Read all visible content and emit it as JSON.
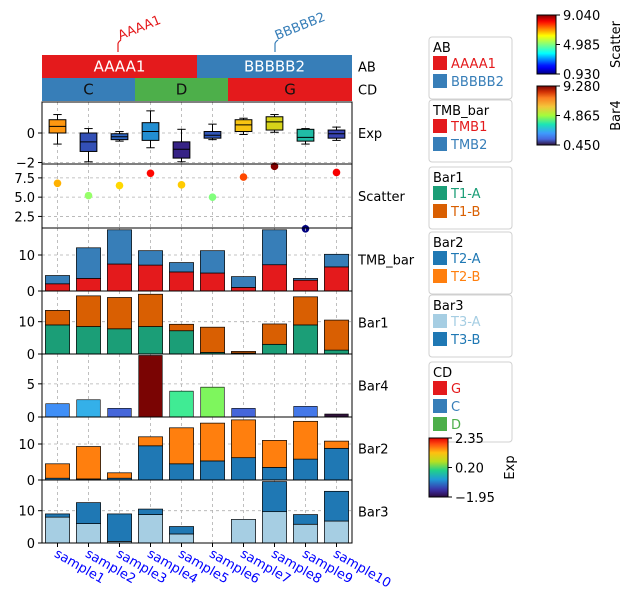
{
  "chart_data": {
    "type": "bar",
    "samples": [
      "sample1",
      "sample2",
      "sample3",
      "sample4",
      "sample5",
      "sample6",
      "sample7",
      "sample8",
      "sample9",
      "sample10"
    ],
    "top_annotations": {
      "ab": {
        "label": "AB",
        "groups": [
          {
            "name": "AAAA1",
            "start": 0,
            "end": 5,
            "color": "#e41a1c"
          },
          {
            "name": "BBBBB2",
            "start": 5,
            "end": 10,
            "color": "#377eb8"
          }
        ],
        "callouts": [
          "AAAA1",
          "BBBBB2"
        ]
      },
      "cd": {
        "label": "CD",
        "groups": [
          {
            "name": "C",
            "start": 0,
            "end": 3,
            "color": "#377eb8"
          },
          {
            "name": "D",
            "start": 3,
            "end": 6,
            "color": "#4daf4a"
          },
          {
            "name": "G",
            "start": 6,
            "end": 10,
            "color": "#e41a1c"
          }
        ]
      }
    },
    "tracks": [
      {
        "key": "exp",
        "type": "boxplot",
        "label": "Exp",
        "ylim": [
          -2.1,
          2.1
        ],
        "yticks": [
          -2,
          0
        ],
        "tick_labels": [
          "−2",
          "0"
        ],
        "boxes": [
          {
            "min": -0.75,
            "q1": 0.0,
            "median": 0.45,
            "q3": 0.9,
            "max": 1.25,
            "value": 1.5
          },
          {
            "min": -1.95,
            "q1": -1.25,
            "median": -0.6,
            "q3": 0.0,
            "max": 0.3,
            "value": -1.2
          },
          {
            "min": -0.55,
            "q1": -0.45,
            "median": -0.25,
            "q3": -0.05,
            "max": 0.1,
            "value": -1.05
          },
          {
            "min": -1.0,
            "q1": -0.5,
            "median": 0.1,
            "q3": 0.7,
            "max": 1.5,
            "value": -0.75
          },
          {
            "min": -1.95,
            "q1": -1.7,
            "median": -1.1,
            "q3": -0.6,
            "max": 0.25,
            "value": -1.6
          },
          {
            "min": -0.45,
            "q1": -0.35,
            "median": -0.15,
            "q3": 0.1,
            "max": 0.6,
            "value": -1.15
          },
          {
            "min": -0.1,
            "q1": 0.1,
            "median": 0.55,
            "q3": 0.9,
            "max": 1.0,
            "value": 1.2
          },
          {
            "min": 0.05,
            "q1": 0.2,
            "median": 0.75,
            "q3": 1.1,
            "max": 1.25,
            "value": 0.9
          },
          {
            "min": -0.75,
            "q1": -0.55,
            "median": -0.3,
            "q3": 0.25,
            "max": 0.3,
            "value": -0.25
          },
          {
            "min": -0.5,
            "q1": -0.35,
            "median": -0.05,
            "q3": 0.2,
            "max": 0.4,
            "value": -1.3
          }
        ]
      },
      {
        "key": "scatter",
        "type": "scatter",
        "label": "Scatter",
        "ylim": [
          1.0,
          9.3
        ],
        "yticks": [
          2.5,
          5.0,
          7.5
        ],
        "tick_labels": [
          "2.5",
          "5.0",
          "7.5"
        ],
        "values": [
          6.8,
          5.2,
          6.5,
          8.1,
          6.6,
          5.0,
          7.6,
          9.0,
          0.9,
          8.2
        ]
      },
      {
        "key": "tmb",
        "type": "stacked_bar",
        "label": "TMB_bar",
        "ylim": [
          0,
          17.5
        ],
        "yticks": [
          0,
          10
        ],
        "tick_labels": [
          "0",
          "10"
        ],
        "series": [
          {
            "name": "TMB1",
            "color": "#e41a1c",
            "values": [
              2.0,
              3.5,
              7.5,
              7.2,
              5.3,
              5.0,
              1.0,
              7.3,
              3.0,
              6.7
            ]
          },
          {
            "name": "TMB2",
            "color": "#377eb8",
            "values": [
              2.3,
              8.5,
              9.5,
              4.0,
              2.6,
              6.2,
              3.0,
              9.7,
              0.5,
              3.5
            ]
          }
        ]
      },
      {
        "key": "bar1",
        "type": "stacked_bar",
        "label": "Bar1",
        "ylim": [
          0,
          19.5
        ],
        "yticks": [
          0,
          10
        ],
        "tick_labels": [
          "0",
          "10"
        ],
        "series": [
          {
            "name": "T1-A",
            "color": "#1b9e77",
            "values": [
              9.0,
              8.5,
              7.8,
              8.5,
              7.2,
              0.5,
              0.3,
              3.0,
              9.0,
              1.2
            ]
          },
          {
            "name": "T1-B",
            "color": "#d95f02",
            "values": [
              4.5,
              9.5,
              9.7,
              10.0,
              2.0,
              7.8,
              0.5,
              6.3,
              8.7,
              9.3
            ]
          }
        ]
      },
      {
        "key": "bar4",
        "type": "bar",
        "label": "Bar4",
        "ylim": [
          0,
          9.5
        ],
        "yticks": [
          0,
          5
        ],
        "tick_labels": [
          "0",
          "5"
        ],
        "values": [
          2.0,
          2.6,
          1.3,
          9.28,
          3.9,
          4.5,
          1.3,
          0.0,
          1.6,
          0.45
        ]
      },
      {
        "key": "bar2",
        "type": "stacked_bar",
        "label": "Bar2",
        "ylim": [
          0,
          17.5
        ],
        "yticks": [
          0,
          10
        ],
        "tick_labels": [
          "0",
          "10"
        ],
        "series": [
          {
            "name": "T2-A",
            "color": "#1f78b4",
            "values": [
              0.5,
              0.3,
              0.5,
              9.5,
              4.5,
              5.3,
              6.2,
              3.5,
              5.8,
              8.8
            ]
          },
          {
            "name": "T2-B",
            "color": "#ff7f0e",
            "values": [
              4.0,
              9.0,
              1.5,
              2.5,
              10.0,
              10.5,
              10.5,
              7.5,
              10.5,
              2.0
            ]
          }
        ]
      },
      {
        "key": "bar3",
        "type": "stacked_bar",
        "label": "Bar3",
        "ylim": [
          0,
          19.5
        ],
        "yticks": [
          0,
          10
        ],
        "tick_labels": [
          "0",
          "10"
        ],
        "series": [
          {
            "name": "T3-A",
            "color": "#a6cee3",
            "values": [
              8.0,
              6.0,
              0.5,
              8.8,
              2.8,
              0.0,
              7.3,
              9.7,
              5.8,
              6.8
            ]
          },
          {
            "name": "T3-B",
            "color": "#1f78b4",
            "values": [
              1.0,
              6.5,
              8.5,
              1.7,
              2.3,
              0.0,
              0.0,
              9.3,
              3.0,
              9.2
            ]
          }
        ]
      }
    ],
    "legends": [
      {
        "title": "AB",
        "items": [
          {
            "label": "AAAA1",
            "color": "#e41a1c"
          },
          {
            "label": "BBBBB2",
            "color": "#377eb8"
          }
        ]
      },
      {
        "title": "TMB_bar",
        "items": [
          {
            "label": "TMB1",
            "color": "#e41a1c"
          },
          {
            "label": "TMB2",
            "color": "#377eb8"
          }
        ]
      },
      {
        "title": "Bar1",
        "items": [
          {
            "label": "T1-A",
            "color": "#1b9e77"
          },
          {
            "label": "T1-B",
            "color": "#d95f02"
          }
        ]
      },
      {
        "title": "Bar2",
        "items": [
          {
            "label": "T2-A",
            "color": "#1f78b4"
          },
          {
            "label": "T2-B",
            "color": "#ff7f0e"
          }
        ]
      },
      {
        "title": "Bar3",
        "items": [
          {
            "label": "T3-A",
            "color": "#a6cee3"
          },
          {
            "label": "T3-B",
            "color": "#1f78b4"
          }
        ]
      },
      {
        "title": "CD",
        "items": [
          {
            "label": "G",
            "color": "#e41a1c"
          },
          {
            "label": "C",
            "color": "#377eb8"
          },
          {
            "label": "D",
            "color": "#4daf4a"
          }
        ]
      }
    ],
    "colorbars": [
      {
        "label": "Scatter",
        "cmap": "jet",
        "min": 0.93,
        "max": 9.04,
        "ticks": [
          "9.040",
          "4.985",
          "0.930"
        ]
      },
      {
        "label": "Bar4",
        "cmap": "turbo",
        "min": 0.45,
        "max": 9.28,
        "ticks": [
          "9.280",
          "4.865",
          "0.450"
        ]
      },
      {
        "label": "Exp",
        "cmap": "gist_rainbow",
        "min": -1.95,
        "max": 2.35,
        "ticks": [
          "2.35",
          "0.20",
          "−1.95"
        ]
      }
    ],
    "grid": true,
    "colors": {
      "sample_label": "#0000ff"
    }
  }
}
